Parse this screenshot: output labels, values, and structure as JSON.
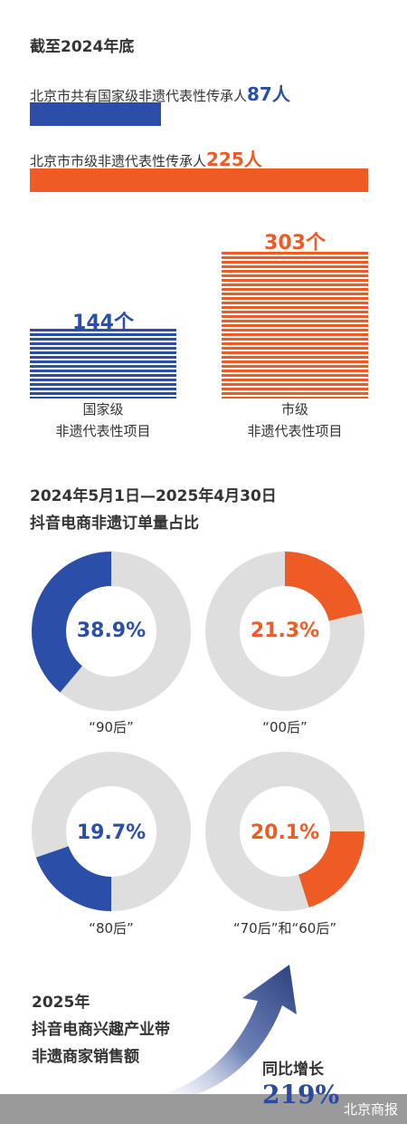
{
  "colors": {
    "blue": "#2b4fa8",
    "orange": "#ef5b24",
    "grey": "#dedede"
  },
  "section1": {
    "heading": "截至2024年底",
    "national_inheritors": {
      "prefix": "北京市共有国家级非遗代表性传承人",
      "number": "87人",
      "value": 87
    },
    "municipal_inheritors": {
      "prefix": "北京市市级非遗代表性传承人",
      "number": "225人",
      "value": 225
    }
  },
  "section2": {
    "chart_data": {
      "type": "bar",
      "categories": [
        "国家级非遗代表性项目",
        "市级非遗代表性项目"
      ],
      "values": [
        144,
        303
      ],
      "value_labels": [
        "144个",
        "303个"
      ],
      "category_lines": [
        [
          "国家级",
          "非遗代表性项目"
        ],
        [
          "市级",
          "非遗代表性项目"
        ]
      ]
    }
  },
  "section3": {
    "title_line1": "2024年5月1日—2025年4月30日",
    "title_line2": "抖音电商非遗订单量占比",
    "chart_data": {
      "type": "pie",
      "slices": [
        {
          "label": "“90后”",
          "value": 38.9,
          "text": "38.9%",
          "color": "blue"
        },
        {
          "label": "“00后”",
          "value": 21.3,
          "text": "21.3%",
          "color": "orange"
        },
        {
          "label": "“80后”",
          "value": 19.7,
          "text": "19.7%",
          "color": "blue"
        },
        {
          "label": "“70后”和“60后”",
          "value": 20.1,
          "text": "20.1%",
          "color": "orange"
        }
      ]
    }
  },
  "section4": {
    "line1": "2025年",
    "line2": "抖音电商兴趣产业带",
    "line3": "非遗商家销售额",
    "growth_label": "同比增长",
    "growth_value": "219%"
  },
  "footer": {
    "source": "北京商报"
  }
}
